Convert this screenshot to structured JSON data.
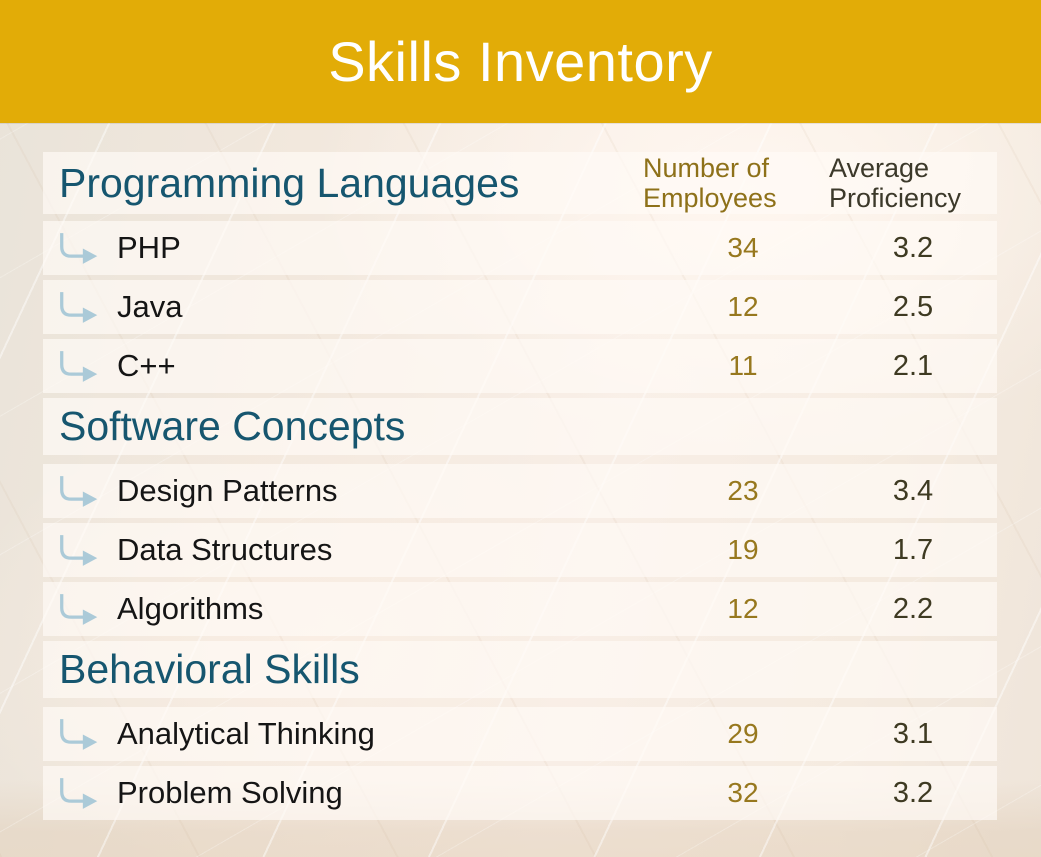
{
  "title": "Skills Inventory",
  "colors": {
    "banner_gold": "#E2AC07",
    "section_teal": "#16566F",
    "employees_header_gold": "#8E7119",
    "employees_value_gold": "#97781E",
    "proficiency_header_dark": "#3C392A",
    "proficiency_value_dark": "#3E3A22",
    "item_text": "#151515",
    "branch_arrow_blue": "#ABCAD8",
    "background_cream": "#F2E8DD"
  },
  "icons": {
    "branch_arrow": "branch-arrow-icon"
  },
  "table": {
    "columns": [
      {
        "id": "employees",
        "label": "Number of Employees"
      },
      {
        "id": "proficiency",
        "label": "Average Proficiency"
      }
    ],
    "sections": [
      {
        "title": "Programming Languages",
        "items": [
          {
            "name": "PHP",
            "employees": "34",
            "proficiency": "3.2"
          },
          {
            "name": "Java",
            "employees": "12",
            "proficiency": "2.5"
          },
          {
            "name": "C++",
            "employees": "11",
            "proficiency": "2.1"
          }
        ]
      },
      {
        "title": "Software Concepts",
        "items": [
          {
            "name": "Design Patterns",
            "employees": "23",
            "proficiency": "3.4"
          },
          {
            "name": "Data Structures",
            "employees": "19",
            "proficiency": "1.7"
          },
          {
            "name": "Algorithms",
            "employees": "12",
            "proficiency": "2.2"
          }
        ]
      },
      {
        "title": "Behavioral Skills",
        "items": [
          {
            "name": "Analytical Thinking",
            "employees": "29",
            "proficiency": "3.1"
          },
          {
            "name": "Problem Solving",
            "employees": "32",
            "proficiency": "3.2"
          }
        ]
      }
    ]
  }
}
